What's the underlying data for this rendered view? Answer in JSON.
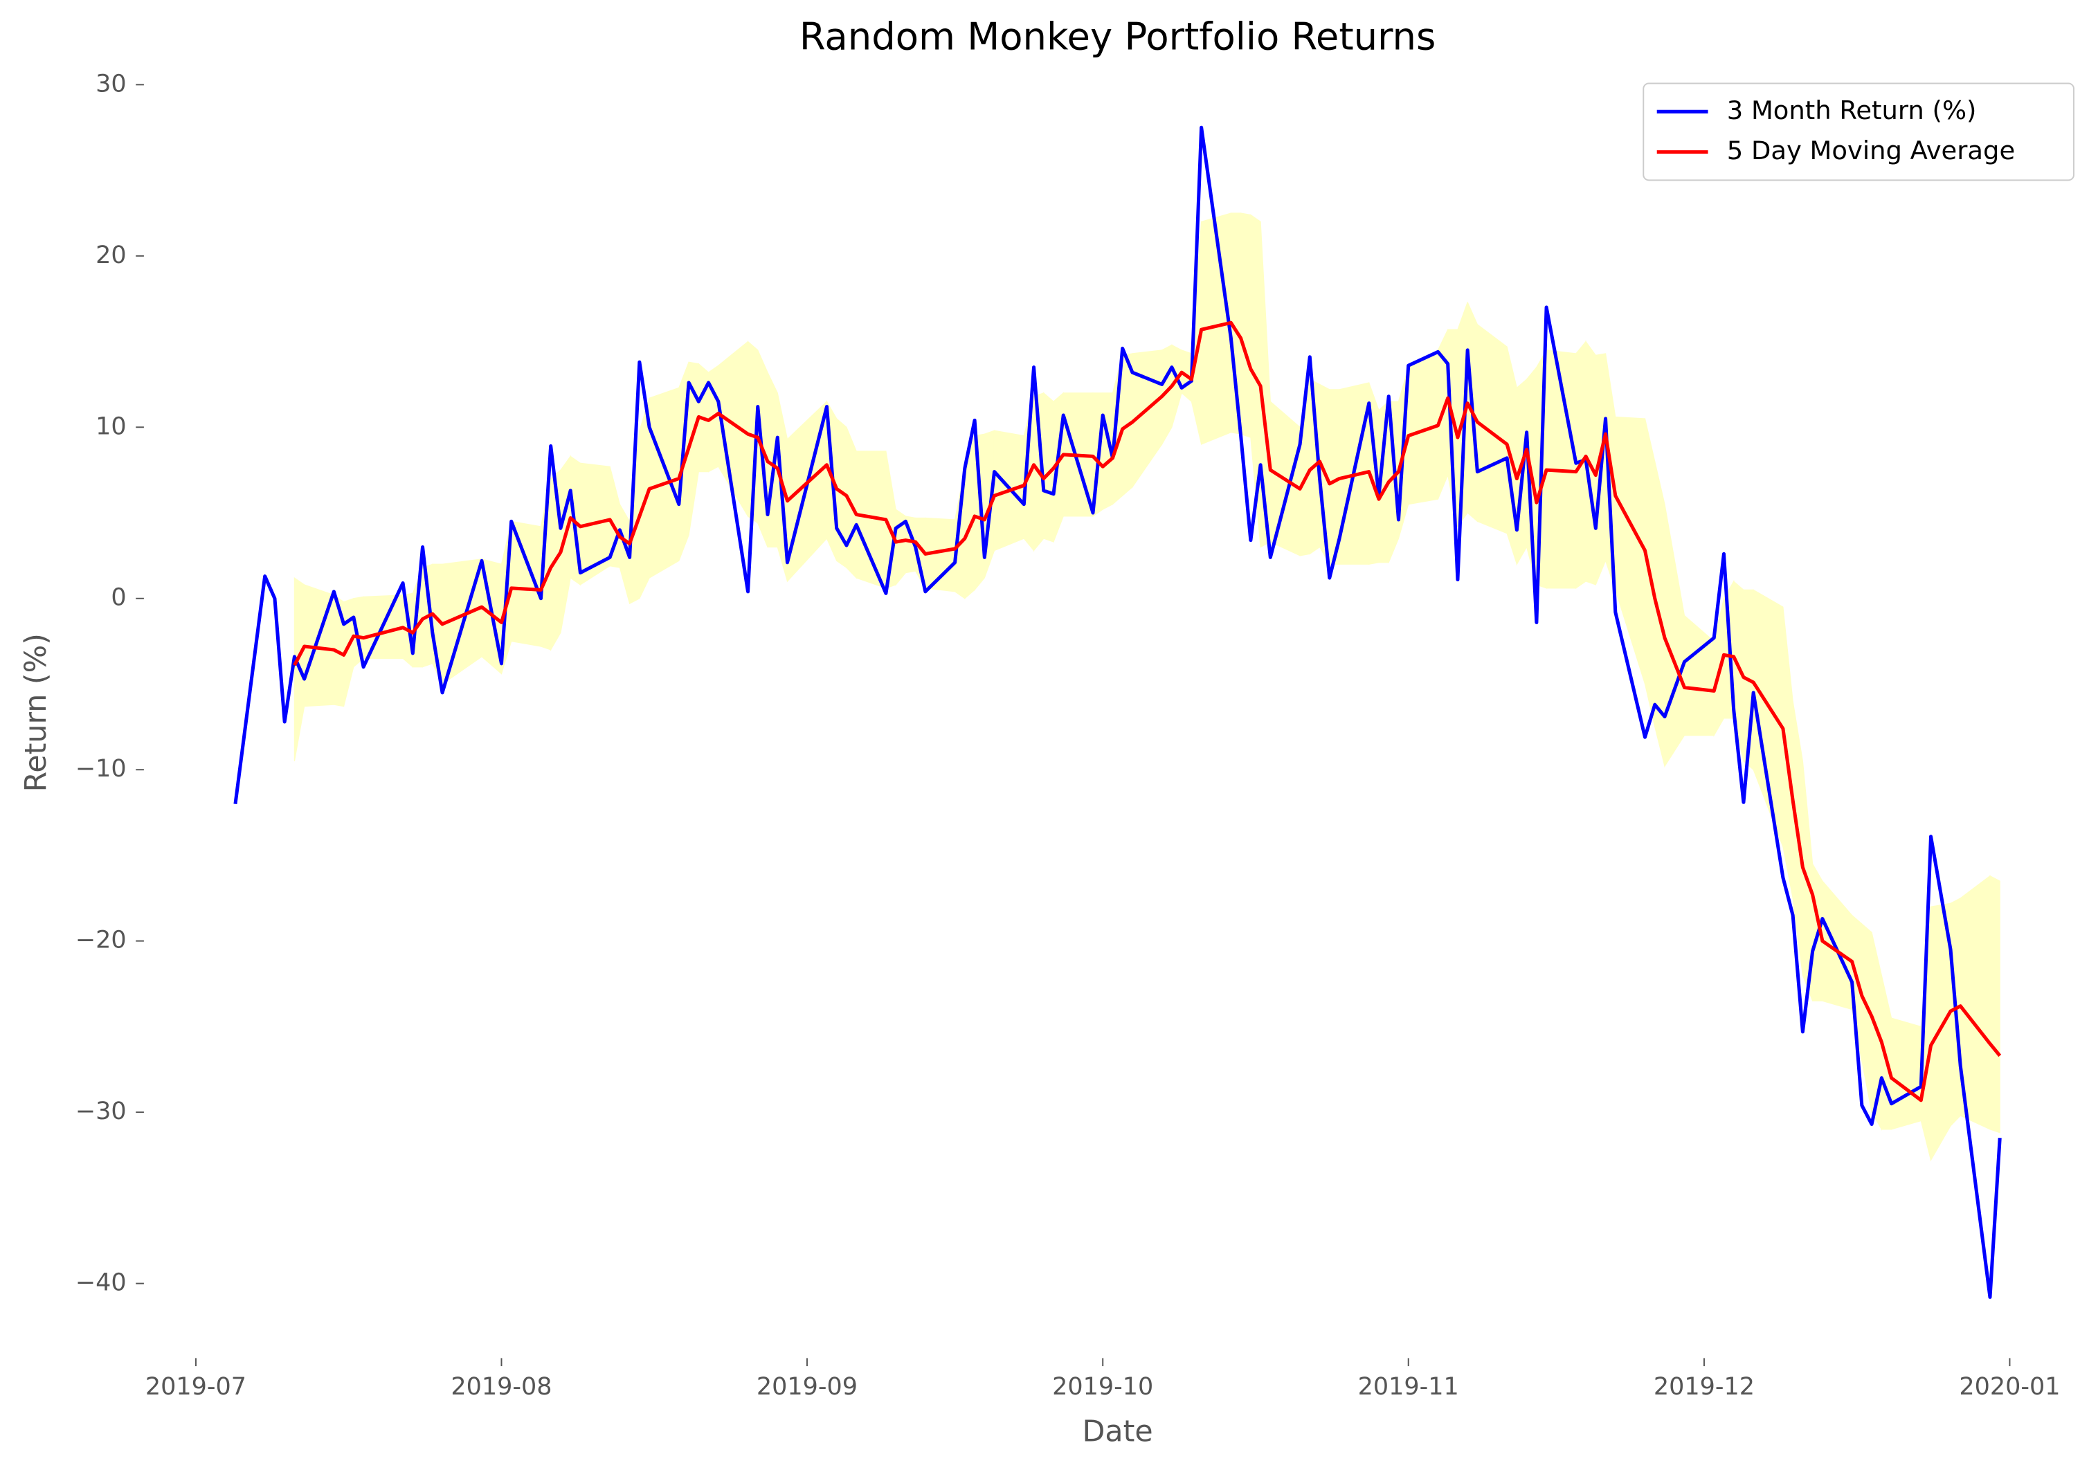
{
  "chart_data": {
    "type": "line",
    "title": "Random Monkey Portfolio Returns",
    "x_label": "Date",
    "y_label": "Return (%)",
    "x": [
      "2019-07-05",
      "2019-07-08",
      "2019-07-09",
      "2019-07-10",
      "2019-07-11",
      "2019-07-12",
      "2019-07-15",
      "2019-07-16",
      "2019-07-17",
      "2019-07-18",
      "2019-07-22",
      "2019-07-23",
      "2019-07-24",
      "2019-07-25",
      "2019-07-26",
      "2019-07-30",
      "2019-08-01",
      "2019-08-02",
      "2019-08-05",
      "2019-08-06",
      "2019-08-07",
      "2019-08-08",
      "2019-08-09",
      "2019-08-12",
      "2019-08-13",
      "2019-08-14",
      "2019-08-15",
      "2019-08-16",
      "2019-08-19",
      "2019-08-20",
      "2019-08-21",
      "2019-08-22",
      "2019-08-23",
      "2019-08-26",
      "2019-08-27",
      "2019-08-28",
      "2019-08-29",
      "2019-08-30",
      "2019-09-03",
      "2019-09-04",
      "2019-09-05",
      "2019-09-06",
      "2019-09-09",
      "2019-09-10",
      "2019-09-11",
      "2019-09-12",
      "2019-09-13",
      "2019-09-16",
      "2019-09-17",
      "2019-09-18",
      "2019-09-19",
      "2019-09-20",
      "2019-09-23",
      "2019-09-24",
      "2019-09-25",
      "2019-09-26",
      "2019-09-27",
      "2019-09-30",
      "2019-10-01",
      "2019-10-02",
      "2019-10-03",
      "2019-10-04",
      "2019-10-07",
      "2019-10-08",
      "2019-10-09",
      "2019-10-10",
      "2019-10-11",
      "2019-10-14",
      "2019-10-15",
      "2019-10-16",
      "2019-10-17",
      "2019-10-18",
      "2019-10-21",
      "2019-10-22",
      "2019-10-23",
      "2019-10-24",
      "2019-10-25",
      "2019-10-28",
      "2019-10-29",
      "2019-10-30",
      "2019-10-31",
      "2019-11-01",
      "2019-11-04",
      "2019-11-05",
      "2019-11-06",
      "2019-11-07",
      "2019-11-08",
      "2019-11-11",
      "2019-11-12",
      "2019-11-13",
      "2019-11-14",
      "2019-11-15",
      "2019-11-18",
      "2019-11-19",
      "2019-11-20",
      "2019-11-21",
      "2019-11-22",
      "2019-11-25",
      "2019-11-26",
      "2019-11-27",
      "2019-11-29",
      "2019-12-02",
      "2019-12-03",
      "2019-12-04",
      "2019-12-05",
      "2019-12-06",
      "2019-12-09",
      "2019-12-10",
      "2019-12-11",
      "2019-12-12",
      "2019-12-13",
      "2019-12-16",
      "2019-12-17",
      "2019-12-18",
      "2019-12-19",
      "2019-12-20",
      "2019-12-23",
      "2019-12-24",
      "2019-12-26",
      "2019-12-27",
      "2019-12-30",
      "2019-12-31"
    ],
    "series": [
      {
        "name": "3 Month Return (%)",
        "color": "#0000ff",
        "values": [
          -12,
          1.3,
          0,
          -7.2,
          -3.4,
          -4.7,
          0.4,
          -1.5,
          -1.1,
          -4.0,
          0.9,
          -3.2,
          3.0,
          -2.0,
          -5.5,
          2.2,
          -3.8,
          4.5,
          0.0,
          8.9,
          4.1,
          6.3,
          1.5,
          2.4,
          4.0,
          2.4,
          13.8,
          10.0,
          5.5,
          12.6,
          11.5,
          12.6,
          11.5,
          0.4,
          11.2,
          4.9,
          9.4,
          2.1,
          11.2,
          4.1,
          3.1,
          4.3,
          0.3,
          4.1,
          4.5,
          3.0,
          0.4,
          2.1,
          7.6,
          10.4,
          2.4,
          7.4,
          5.5,
          13.5,
          6.3,
          6.1,
          10.7,
          5.0,
          10.7,
          8.2,
          14.6,
          13.2,
          12.5,
          13.5,
          12.3,
          12.7,
          27.5,
          15.2,
          9.5,
          3.4,
          7.8,
          2.4,
          9.0,
          14.1,
          7.0,
          1.2,
          3.5,
          11.4,
          6.0,
          11.8,
          4.6,
          13.6,
          14.4,
          13.7,
          1.1,
          14.5,
          7.4,
          8.2,
          4.0,
          9.7,
          -1.4,
          17.0,
          7.9,
          8.1,
          4.1,
          10.5,
          -0.8,
          -8.1,
          -6.2,
          -6.9,
          -3.7,
          -2.3,
          2.6,
          -6.5,
          -11.9,
          -5.5,
          -16.3,
          -18.5,
          -25.3,
          -20.6,
          -18.7,
          -22.4,
          -29.6,
          -30.7,
          -28.0,
          -29.5,
          -28.5,
          -13.9,
          -20.5,
          -27.3,
          -40.8,
          -31.5
        ]
      },
      {
        "name": "5 Day Moving Average",
        "color": "#ff0000",
        "values": [
          null,
          null,
          null,
          null,
          -3.9,
          -2.8,
          -3.0,
          -3.3,
          -2.2,
          -2.3,
          -1.7,
          -2.0,
          -1.2,
          -0.9,
          -1.5,
          -0.5,
          -1.4,
          0.6,
          0.5,
          1.8,
          2.7,
          4.7,
          4.2,
          4.6,
          3.6,
          3.2,
          4.8,
          6.4,
          7.0,
          8.8,
          10.6,
          10.4,
          10.8,
          9.6,
          9.4,
          8.0,
          7.6,
          5.7,
          7.8,
          6.4,
          6.0,
          4.9,
          4.6,
          3.3,
          3.4,
          3.3,
          2.6,
          2.9,
          3.5,
          4.8,
          4.6,
          6.0,
          6.6,
          7.8,
          7.0,
          7.6,
          8.4,
          8.3,
          7.7,
          8.2,
          9.9,
          10.3,
          11.8,
          12.4,
          13.2,
          12.8,
          15.7,
          16.1,
          15.2,
          13.4,
          12.4,
          7.5,
          6.4,
          7.5,
          8.0,
          6.7,
          7.0,
          7.4,
          5.8,
          6.8,
          7.4,
          9.5,
          10.1,
          11.7,
          9.4,
          11.4,
          10.3,
          9.0,
          7.0,
          8.7,
          5.6,
          7.5,
          7.4,
          8.3,
          7.2,
          9.6,
          6.0,
          2.8,
          0.0,
          -2.3,
          -5.2,
          -5.4,
          -3.3,
          -3.4,
          -4.6,
          -4.9,
          -7.6,
          -11.8,
          -15.7,
          -17.3,
          -20.0,
          -21.2,
          -23.2,
          -24.4,
          -25.9,
          -28.0,
          -29.3,
          -26.1,
          -24.1,
          -23.8,
          -26.0,
          -26.7
        ]
      }
    ],
    "band": {
      "color": "#ffffc4",
      "upper": [
        null,
        null,
        null,
        null,
        1.2,
        0.8,
        0.2,
        -0.2,
        0.0,
        0.1,
        0.2,
        0.3,
        1.8,
        2.0,
        2.0,
        2.3,
        2.0,
        4.5,
        4.2,
        7.0,
        7.5,
        8.3,
        7.9,
        7.7,
        5.5,
        4.5,
        9.8,
        11.7,
        12.3,
        13.8,
        13.7,
        13.2,
        13.6,
        15.0,
        14.5,
        13.2,
        12.0,
        9.3,
        11.5,
        10.5,
        10.0,
        8.6,
        8.6,
        5.2,
        4.8,
        4.7,
        4.7,
        4.6,
        7.5,
        9.5,
        9.6,
        9.8,
        9.5,
        11.8,
        12.0,
        11.5,
        12.0,
        12.0,
        12.0,
        12.0,
        14.2,
        14.3,
        14.5,
        14.8,
        14.5,
        14.3,
        22.0,
        22.5,
        22.5,
        22.4,
        22.0,
        11.5,
        10.0,
        12.8,
        12.5,
        12.2,
        12.2,
        12.6,
        11.0,
        11.5,
        11.5,
        13.5,
        14.5,
        15.7,
        15.7,
        17.3,
        16.0,
        14.7,
        12.3,
        12.8,
        13.5,
        14.5,
        14.3,
        15.0,
        14.2,
        14.3,
        10.6,
        10.5,
        8.0,
        5.5,
        -1.0,
        -2.5,
        0.0,
        1.0,
        0.5,
        0.5,
        -0.5,
        -6.0,
        -9.5,
        -15.5,
        -16.5,
        -18.5,
        -19.0,
        -19.5,
        -22.0,
        -24.5,
        -25.0,
        -18.0,
        -17.8,
        -17.5,
        -16.2,
        -16.5
      ],
      "lower": [
        null,
        null,
        null,
        null,
        -9.5,
        -6.3,
        -6.2,
        -6.3,
        -4.0,
        -3.5,
        -3.5,
        -4.0,
        -4.0,
        -3.8,
        -5.0,
        -3.4,
        -4.4,
        -2.5,
        -2.8,
        -3.0,
        -2.0,
        1.2,
        0.8,
        1.9,
        1.8,
        -0.3,
        0.0,
        1.2,
        2.2,
        3.7,
        7.4,
        7.4,
        7.7,
        4.8,
        4.4,
        3.0,
        3.0,
        1.0,
        3.5,
        2.2,
        1.8,
        1.2,
        0.6,
        0.8,
        1.5,
        1.6,
        0.6,
        0.4,
        0.0,
        0.5,
        1.2,
        2.8,
        3.5,
        2.8,
        3.5,
        3.3,
        4.8,
        4.8,
        5.2,
        5.5,
        6.0,
        6.5,
        9.0,
        10.0,
        12.0,
        11.5,
        9.0,
        9.7,
        9.6,
        9.4,
        3.0,
        3.3,
        2.5,
        2.6,
        3.0,
        2.0,
        2.0,
        2.0,
        2.1,
        2.1,
        3.5,
        5.5,
        5.8,
        7.2,
        4.2,
        5.0,
        4.5,
        3.8,
        2.0,
        3.0,
        0.8,
        0.6,
        0.6,
        1.0,
        0.8,
        2.2,
        0.5,
        -5.0,
        -7.5,
        -9.8,
        -8.0,
        -8.0,
        -7.0,
        -7.0,
        -9.5,
        -10.0,
        -14.5,
        -17.5,
        -22.0,
        -23.5,
        -23.5,
        -24.0,
        -27.0,
        -30.0,
        -31.0,
        -31.0,
        -30.5,
        -32.8,
        -30.8,
        -30.2,
        -31.0,
        -31.2
      ]
    },
    "xlim": [
      "2019-06-26",
      "2020-01-09"
    ],
    "xticks": [
      {
        "value": "2019-07-01",
        "label": "2019-07"
      },
      {
        "value": "2019-08-01",
        "label": "2019-08"
      },
      {
        "value": "2019-09-01",
        "label": "2019-09"
      },
      {
        "value": "2019-10-01",
        "label": "2019-10"
      },
      {
        "value": "2019-11-01",
        "label": "2019-11"
      },
      {
        "value": "2019-12-01",
        "label": "2019-12"
      },
      {
        "value": "2020-01-01",
        "label": "2020-01"
      }
    ],
    "ylim": [
      -44.2,
      30.9
    ],
    "yticks": [
      {
        "value": -40,
        "label": "−40"
      },
      {
        "value": -30,
        "label": "−30"
      },
      {
        "value": -20,
        "label": "−20"
      },
      {
        "value": -10,
        "label": "−10"
      },
      0,
      10,
      20,
      30
    ],
    "grid": false,
    "legend": "upper right"
  }
}
